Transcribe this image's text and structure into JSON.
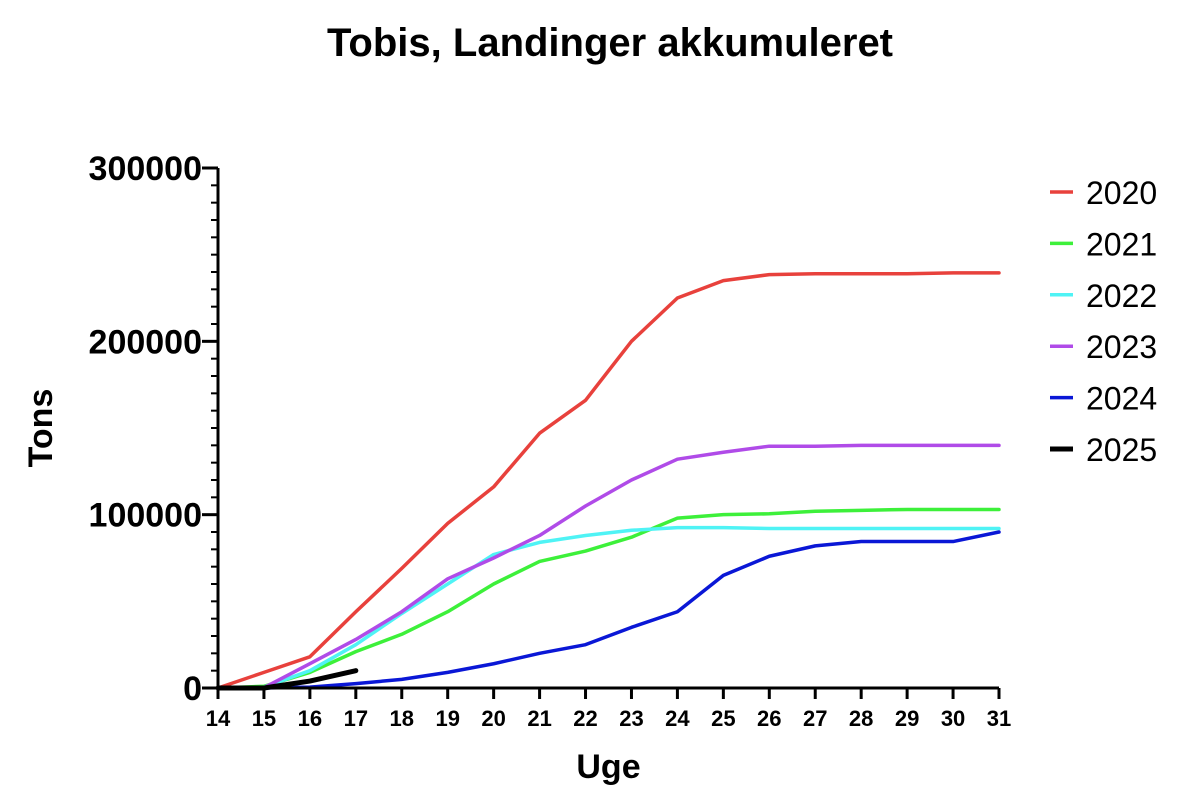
{
  "chart_data": {
    "type": "line",
    "title": "Tobis, Landinger akkumuleret",
    "xlabel": "Uge",
    "ylabel": "Tons",
    "xlim": [
      14,
      31
    ],
    "ylim": [
      0,
      300000
    ],
    "x_ticks": [
      "14",
      "15",
      "16",
      "17",
      "18",
      "19",
      "20",
      "21",
      "22",
      "23",
      "24",
      "25",
      "26",
      "27",
      "28",
      "29",
      "30",
      "31"
    ],
    "y_ticks": [
      "0",
      "100000",
      "200000",
      "300000"
    ],
    "legend_position": "right",
    "grid": false,
    "series": [
      {
        "name": "2020",
        "color": "#e8413c",
        "x": [
          14,
          15,
          16,
          17,
          18,
          19,
          20,
          21,
          22,
          23,
          24,
          25,
          26,
          27,
          28,
          29,
          30,
          31
        ],
        "y": [
          0,
          9000,
          18000,
          44000,
          69000,
          95000,
          116000,
          147000,
          166000,
          200000,
          225000,
          235000,
          238500,
          239000,
          239000,
          239000,
          239500,
          239500
        ]
      },
      {
        "name": "2021",
        "color": "#3df03a",
        "x": [
          14,
          15,
          16,
          17,
          18,
          19,
          20,
          21,
          22,
          23,
          24,
          25,
          26,
          27,
          28,
          29,
          30,
          31
        ],
        "y": [
          0,
          1000,
          9000,
          21000,
          31000,
          44000,
          60000,
          73000,
          79000,
          87000,
          98000,
          100000,
          100500,
          102000,
          102500,
          103000,
          103000,
          103000
        ]
      },
      {
        "name": "2022",
        "color": "#4ff3f5",
        "x": [
          14,
          15,
          16,
          17,
          18,
          19,
          20,
          21,
          22,
          23,
          24,
          25,
          26,
          27,
          28,
          29,
          30,
          31
        ],
        "y": [
          0,
          500,
          10000,
          25000,
          43000,
          60000,
          77000,
          84000,
          88000,
          91000,
          92500,
          92500,
          92000,
          92000,
          92000,
          92000,
          92000,
          92000
        ]
      },
      {
        "name": "2023",
        "color": "#b04be8",
        "x": [
          14,
          15,
          16,
          17,
          18,
          19,
          20,
          21,
          22,
          23,
          24,
          25,
          26,
          27,
          28,
          29,
          30,
          31
        ],
        "y": [
          0,
          200,
          14000,
          28000,
          44000,
          63000,
          75000,
          88000,
          105000,
          120000,
          132000,
          136000,
          139500,
          139500,
          140000,
          140000,
          140000,
          140000
        ]
      },
      {
        "name": "2024",
        "color": "#0a17d6",
        "x": [
          14,
          15,
          16,
          17,
          18,
          19,
          20,
          21,
          22,
          23,
          24,
          25,
          26,
          27,
          28,
          29,
          30,
          31
        ],
        "y": [
          0,
          0,
          500,
          2500,
          5000,
          9000,
          14000,
          20000,
          25000,
          35000,
          44000,
          65000,
          76000,
          82000,
          84500,
          84500,
          84500,
          90000
        ]
      },
      {
        "name": "2025",
        "color": "#000000",
        "x": [
          14,
          15,
          16,
          17
        ],
        "y": [
          0,
          0,
          4000,
          10000
        ]
      }
    ]
  }
}
